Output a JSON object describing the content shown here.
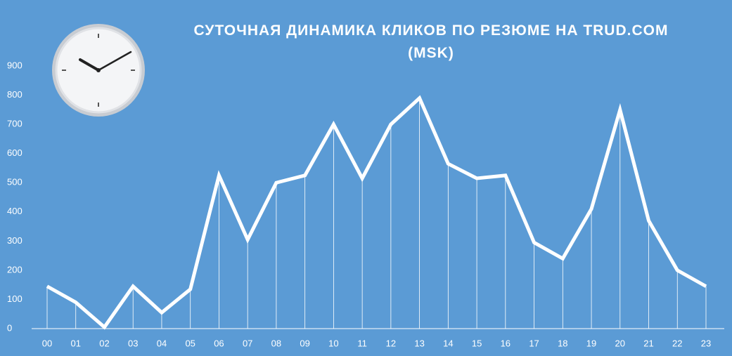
{
  "chart_data": {
    "type": "line",
    "title": "СУТОЧНАЯ ДИНАМИКА КЛИКОВ ПО РЕЗЮМЕ НА TRUD.COM (MSK)",
    "categories": [
      "00",
      "01",
      "02",
      "03",
      "04",
      "05",
      "06",
      "07",
      "08",
      "09",
      "10",
      "11",
      "12",
      "13",
      "14",
      "15",
      "16",
      "17",
      "18",
      "19",
      "20",
      "21",
      "22",
      "23"
    ],
    "values": [
      145,
      90,
      5,
      145,
      55,
      135,
      525,
      305,
      500,
      525,
      700,
      515,
      700,
      790,
      565,
      515,
      525,
      295,
      240,
      410,
      750,
      370,
      200,
      145
    ],
    "color": "#ffffff",
    "drop_lines": true,
    "ylim": [
      0,
      900
    ],
    "yticks": [
      0,
      100,
      200,
      300,
      400,
      500,
      600,
      700,
      800,
      900
    ],
    "grid": false
  }
}
